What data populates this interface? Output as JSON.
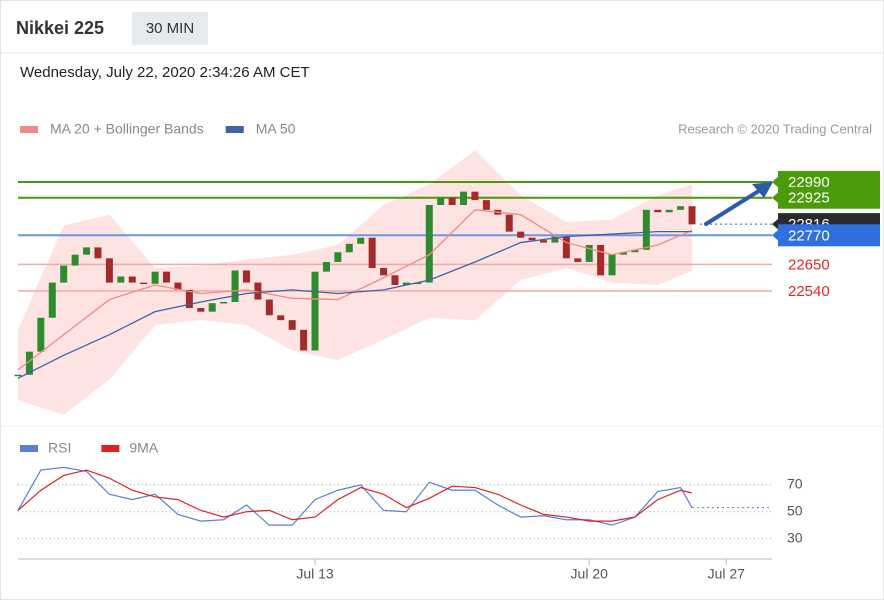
{
  "header": {
    "title": "Nikkei 225",
    "timeframe": "30 MIN",
    "timestamp": "Wednesday, July 22, 2020 2:34:26 AM CET",
    "credit": "Research © 2020 Trading Central"
  },
  "chart_data": [
    {
      "type": "candlestick",
      "xlim": [
        0,
        66
      ],
      "ylim": [
        22000,
        23130
      ],
      "values": [
        22195,
        22290,
        22430,
        22575,
        22645,
        22690,
        22720,
        22675,
        22575,
        22600,
        22575,
        22570,
        22620,
        22575,
        22545,
        22470,
        22455,
        22490,
        22495,
        22625,
        22575,
        22505,
        22440,
        22420,
        22380,
        22295,
        22620,
        22660,
        22700,
        22735,
        22760,
        22635,
        22605,
        22565,
        22575,
        22575,
        22895,
        22925,
        22895,
        22950,
        22915,
        22875,
        22855,
        22785,
        22760,
        22750,
        22740,
        22765,
        22675,
        22660,
        22730,
        22605,
        22690,
        22700,
        22710,
        22875,
        22865,
        22875,
        22890,
        22815
      ],
      "up_color": "#2e8b2e",
      "down_color": "#a52a2a",
      "overlays": {
        "x": [
          0,
          4,
          8,
          12,
          16,
          20,
          24,
          28,
          32,
          36,
          40,
          44,
          48,
          52,
          56,
          59
        ],
        "series": [
          {
            "name": "MA 20 + Bollinger Bands",
            "color": "#f08a84",
            "band_color": "#fde3e2",
            "values": [
              22215,
              22360,
              22505,
              22565,
              22530,
              22545,
              22510,
              22505,
              22595,
              22690,
              22875,
              22855,
              22740,
              22690,
              22730,
              22790
            ],
            "upper": [
              22380,
              22810,
              22855,
              22635,
              22645,
              22670,
              22690,
              22730,
              22895,
              22980,
              23120,
              22935,
              22825,
              22835,
              22935,
              22980
            ],
            "lower": [
              22090,
              22030,
              22175,
              22400,
              22420,
              22400,
              22295,
              22255,
              22340,
              22430,
              22420,
              22585,
              22635,
              22575,
              22565,
              22625
            ]
          },
          {
            "name": "MA 50",
            "color": "#3d64a8",
            "values": [
              22180,
              22275,
              22360,
              22455,
              22495,
              22530,
              22545,
              22530,
              22545,
              22585,
              22660,
              22740,
              22765,
              22775,
              22785,
              22785
            ]
          }
        ]
      },
      "levels": [
        {
          "value": 22990,
          "color": "#4a9a0a",
          "style": "box",
          "line": "solid"
        },
        {
          "value": 22925,
          "color": "#4a9a0a",
          "style": "box",
          "line": "solid"
        },
        {
          "value": 22816,
          "color": "#2b2b2b",
          "style": "box",
          "line": "dotted"
        },
        {
          "value": 22770,
          "color": "#2f6fe0",
          "style": "box",
          "line": "solid"
        },
        {
          "value": 22650,
          "color": "#e02828",
          "style": "text",
          "line": "solid"
        },
        {
          "value": 22540,
          "color": "#e02828",
          "style": "text",
          "line": "solid"
        }
      ]
    },
    {
      "type": "line",
      "x": [
        0,
        2,
        4,
        6,
        8,
        10,
        12,
        14,
        16,
        18,
        20,
        22,
        24,
        26,
        28,
        30,
        32,
        34,
        36,
        38,
        40,
        42,
        44,
        46,
        48,
        50,
        52,
        54,
        56,
        58,
        59
      ],
      "xlim": [
        0,
        66
      ],
      "xticks": [
        {
          "value": 26,
          "label": "Jul 13"
        },
        {
          "value": 50,
          "label": "Jul 20"
        },
        {
          "value": 62,
          "label": "Jul 27"
        }
      ],
      "ylim": [
        20,
        90
      ],
      "yticks": [
        30,
        50,
        70
      ],
      "grid": true,
      "series": [
        {
          "name": "RSI",
          "color": "#5b7fd6",
          "values": [
            51,
            81,
            83,
            80,
            63,
            59,
            63,
            48,
            43,
            44,
            55,
            40,
            40,
            59,
            66,
            70,
            51,
            50,
            72,
            66,
            66,
            55,
            46,
            47,
            44,
            44,
            40,
            46,
            65,
            68,
            53
          ]
        },
        {
          "name": "9MA",
          "color": "#e02020",
          "values": [
            51,
            66,
            77,
            81,
            75,
            66,
            61,
            59,
            51,
            46,
            50,
            51,
            44,
            46,
            59,
            68,
            63,
            53,
            60,
            69,
            68,
            63,
            55,
            48,
            46,
            43,
            43,
            46,
            59,
            66,
            64
          ]
        }
      ]
    }
  ]
}
